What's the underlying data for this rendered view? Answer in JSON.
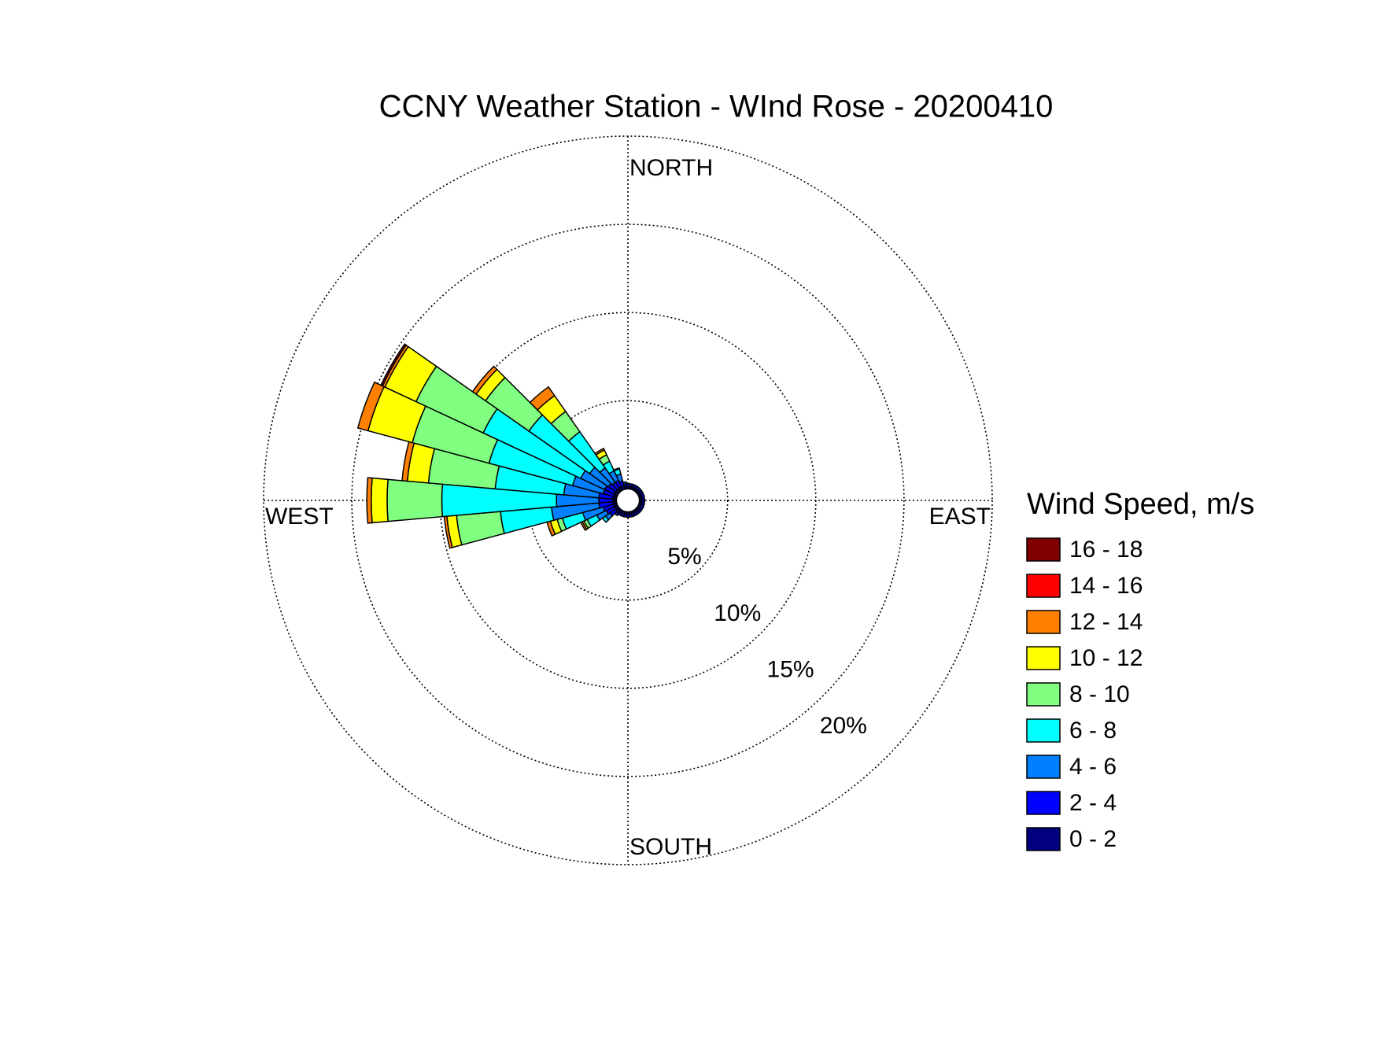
{
  "chart_data": {
    "type": "windrose",
    "title": "CCNY Weather Station - WInd Rose - 20200410",
    "direction_labels": [
      "NORTH",
      "EAST",
      "SOUTH",
      "WEST"
    ],
    "x": [
      0,
      10,
      20,
      30,
      40,
      50,
      60,
      70,
      80,
      90,
      100,
      110,
      120,
      130,
      140,
      150,
      160,
      170,
      180,
      190,
      200,
      210,
      220,
      230,
      240,
      250,
      260,
      270,
      280,
      290,
      300,
      310,
      320,
      330,
      340,
      350
    ],
    "rlim": [
      0,
      20
    ],
    "rticks": [
      {
        "value": 5,
        "label": "5%"
      },
      {
        "value": 10,
        "label": "10%"
      },
      {
        "value": 15,
        "label": "15%"
      },
      {
        "value": 20,
        "label": "20%"
      }
    ],
    "grid": true,
    "legend_title": "Wind Speed, m/s",
    "legend_position": "right",
    "series": [
      {
        "name": "0 - 2",
        "color": "#000080",
        "values": [
          0.15,
          0.15,
          0.15,
          0.15,
          0.15,
          0.15,
          0.15,
          0.15,
          0.15,
          0.15,
          0.15,
          0.15,
          0.15,
          0.15,
          0.15,
          0.15,
          0.15,
          0.15,
          0.15,
          0.15,
          0.15,
          0.15,
          0.15,
          0.2,
          0.2,
          0.2,
          0.2,
          0.2,
          0.2,
          0.2,
          0.2,
          0.2,
          0.2,
          0.2,
          0.2,
          0.15
        ]
      },
      {
        "name": "2 - 4",
        "color": "#0000ff",
        "values": [
          0.15,
          0.15,
          0.15,
          0.15,
          0.15,
          0.15,
          0.15,
          0.15,
          0.15,
          0.15,
          0.15,
          0.15,
          0.15,
          0.15,
          0.15,
          0.15,
          0.15,
          0.15,
          0.15,
          0.15,
          0.15,
          0.15,
          0.15,
          0.4,
          0.5,
          0.6,
          0.8,
          0.8,
          0.8,
          0.6,
          0.6,
          0.5,
          0.4,
          0.4,
          0.3,
          0.15
        ]
      },
      {
        "name": "4 - 6",
        "color": "#0080ff",
        "values": [
          0,
          0,
          0,
          0,
          0,
          0,
          0,
          0,
          0,
          0,
          0,
          0,
          0,
          0,
          0,
          0,
          0,
          0,
          0,
          0,
          0,
          0,
          0.1,
          0.3,
          0.6,
          1.2,
          2.7,
          2.4,
          2.0,
          1.8,
          1.5,
          1.3,
          1.0,
          0.6,
          0.4,
          0.1
        ]
      },
      {
        "name": "6 - 8",
        "color": "#00ffff",
        "values": [
          0,
          0,
          0,
          0,
          0,
          0,
          0,
          0,
          0,
          0,
          0,
          0,
          0,
          0,
          0,
          0,
          0,
          0,
          0,
          0,
          0,
          0,
          0,
          0.2,
          0.6,
          1.2,
          2.9,
          6.5,
          3.9,
          4.9,
          6.1,
          4.2,
          2.5,
          0.6,
          0.3,
          0
        ]
      },
      {
        "name": "8 - 10",
        "color": "#80ff80",
        "values": [
          0,
          0,
          0,
          0,
          0,
          0,
          0,
          0,
          0,
          0,
          0,
          0,
          0,
          0,
          0,
          0,
          0,
          0,
          0,
          0,
          0,
          0,
          0,
          0,
          0.2,
          0.3,
          2.5,
          3.1,
          3.8,
          4.5,
          4.2,
          3.0,
          1.4,
          0.4,
          0.05,
          0
        ]
      },
      {
        "name": "10 - 12",
        "color": "#ffff00",
        "values": [
          0,
          0,
          0,
          0,
          0,
          0,
          0,
          0,
          0,
          0,
          0,
          0,
          0,
          0,
          0,
          0,
          0,
          0,
          0,
          0,
          0,
          0,
          0,
          0,
          0.1,
          0.4,
          0.55,
          0.9,
          1.2,
          2.6,
          1.95,
          0.65,
          1.1,
          0.3,
          0,
          0
        ]
      },
      {
        "name": "12 - 14",
        "color": "#ff8000",
        "values": [
          0,
          0,
          0,
          0,
          0,
          0,
          0,
          0,
          0,
          0,
          0,
          0,
          0,
          0,
          0,
          0,
          0,
          0,
          0,
          0,
          0,
          0,
          0,
          0,
          0.1,
          0.2,
          0.15,
          0.25,
          0.3,
          0.6,
          0.15,
          0.25,
          0.6,
          0.1,
          0,
          0
        ]
      },
      {
        "name": "14 - 16",
        "color": "#ff0000",
        "values": [
          0,
          0,
          0,
          0,
          0,
          0,
          0,
          0,
          0,
          0,
          0,
          0,
          0,
          0,
          0,
          0,
          0,
          0,
          0,
          0,
          0,
          0,
          0,
          0,
          0,
          0,
          0,
          0,
          0,
          0,
          0,
          0,
          0,
          0,
          0,
          0
        ]
      },
      {
        "name": "16 - 18",
        "color": "#800000",
        "values": [
          0,
          0,
          0,
          0,
          0,
          0,
          0,
          0,
          0,
          0,
          0,
          0,
          0,
          0,
          0,
          0,
          0,
          0,
          0,
          0,
          0,
          0,
          0,
          0,
          0,
          0,
          0,
          0,
          0,
          0,
          0.1,
          0,
          0,
          0,
          0,
          0
        ]
      }
    ]
  }
}
